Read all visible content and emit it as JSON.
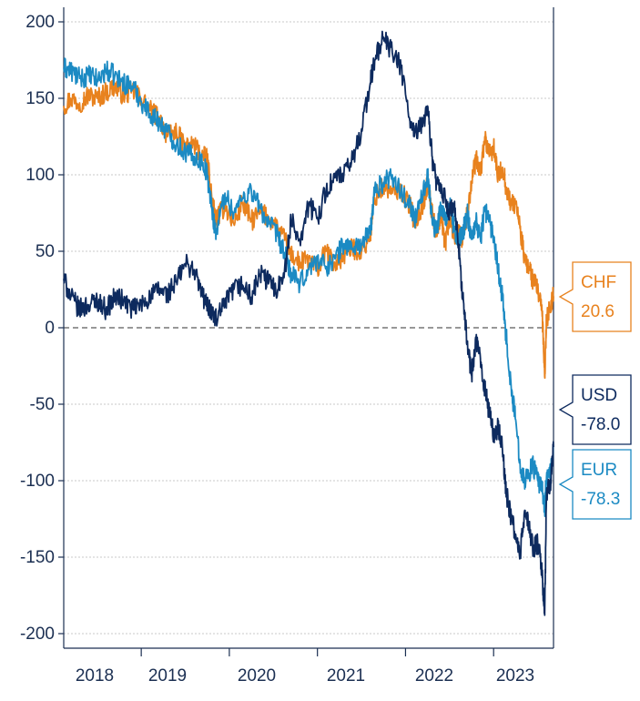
{
  "chart_data": {
    "type": "line",
    "title": "",
    "xlabel": "",
    "ylabel": "",
    "ylim": [
      -200,
      200
    ],
    "yticks": [
      200,
      150,
      100,
      50,
      0,
      -50,
      -100,
      -150,
      -200
    ],
    "ytick_labels": [
      "200",
      "150",
      "100",
      "50",
      "0",
      "-50",
      "-100",
      "-150",
      "-200"
    ],
    "xlim": [
      2017.62,
      2023.18
    ],
    "x_tick_labels": [
      "2018",
      "2019",
      "2020",
      "2021",
      "2022",
      "2023"
    ],
    "grid": true,
    "zero_line": "dashed",
    "legend": "callouts at right edge",
    "series": [
      {
        "name": "CHF",
        "color": "#e8821e",
        "last_label": "20.6",
        "points": [
          [
            2017.62,
            145
          ],
          [
            2017.7,
            150
          ],
          [
            2017.8,
            147
          ],
          [
            2017.9,
            152
          ],
          [
            2018.0,
            150
          ],
          [
            2018.1,
            154
          ],
          [
            2018.2,
            158
          ],
          [
            2018.3,
            152
          ],
          [
            2018.4,
            155
          ],
          [
            2018.5,
            150
          ],
          [
            2018.6,
            142
          ],
          [
            2018.7,
            138
          ],
          [
            2018.8,
            125
          ],
          [
            2018.9,
            128
          ],
          [
            2019.0,
            118
          ],
          [
            2019.1,
            120
          ],
          [
            2019.2,
            112
          ],
          [
            2019.25,
            110
          ],
          [
            2019.3,
            85
          ],
          [
            2019.35,
            70
          ],
          [
            2019.45,
            80
          ],
          [
            2019.55,
            68
          ],
          [
            2019.65,
            82
          ],
          [
            2019.75,
            70
          ],
          [
            2019.85,
            75
          ],
          [
            2019.95,
            72
          ],
          [
            2020.05,
            65
          ],
          [
            2020.15,
            55
          ],
          [
            2020.2,
            48
          ],
          [
            2020.3,
            42
          ],
          [
            2020.4,
            45
          ],
          [
            2020.5,
            38
          ],
          [
            2020.6,
            50
          ],
          [
            2020.7,
            40
          ],
          [
            2020.8,
            48
          ],
          [
            2020.9,
            52
          ],
          [
            2021.0,
            50
          ],
          [
            2021.1,
            60
          ],
          [
            2021.15,
            85
          ],
          [
            2021.25,
            92
          ],
          [
            2021.35,
            88
          ],
          [
            2021.45,
            90
          ],
          [
            2021.55,
            80
          ],
          [
            2021.6,
            70
          ],
          [
            2021.7,
            80
          ],
          [
            2021.75,
            95
          ],
          [
            2021.8,
            75
          ],
          [
            2021.85,
            62
          ],
          [
            2021.9,
            75
          ],
          [
            2021.95,
            55
          ],
          [
            2022.0,
            72
          ],
          [
            2022.05,
            60
          ],
          [
            2022.1,
            62
          ],
          [
            2022.15,
            58
          ],
          [
            2022.2,
            75
          ],
          [
            2022.25,
            95
          ],
          [
            2022.3,
            110
          ],
          [
            2022.35,
            100
          ],
          [
            2022.4,
            125
          ],
          [
            2022.45,
            112
          ],
          [
            2022.5,
            118
          ],
          [
            2022.55,
            98
          ],
          [
            2022.6,
            105
          ],
          [
            2022.65,
            90
          ],
          [
            2022.7,
            80
          ],
          [
            2022.75,
            82
          ],
          [
            2022.8,
            65
          ],
          [
            2022.85,
            45
          ],
          [
            2022.9,
            40
          ],
          [
            2022.95,
            30
          ],
          [
            2023.0,
            25
          ],
          [
            2023.05,
            10
          ],
          [
            2023.08,
            -32
          ],
          [
            2023.1,
            5
          ],
          [
            2023.15,
            15
          ],
          [
            2023.18,
            20.6
          ]
        ]
      },
      {
        "name": "EUR",
        "color": "#1b8ac3",
        "last_label": "-78.3",
        "points": [
          [
            2017.62,
            170
          ],
          [
            2017.7,
            168
          ],
          [
            2017.8,
            163
          ],
          [
            2017.9,
            165
          ],
          [
            2018.0,
            162
          ],
          [
            2018.1,
            168
          ],
          [
            2018.2,
            165
          ],
          [
            2018.3,
            160
          ],
          [
            2018.4,
            158
          ],
          [
            2018.5,
            148
          ],
          [
            2018.6,
            140
          ],
          [
            2018.7,
            135
          ],
          [
            2018.8,
            128
          ],
          [
            2018.9,
            120
          ],
          [
            2019.0,
            115
          ],
          [
            2019.1,
            112
          ],
          [
            2019.2,
            108
          ],
          [
            2019.25,
            100
          ],
          [
            2019.3,
            78
          ],
          [
            2019.35,
            62
          ],
          [
            2019.45,
            88
          ],
          [
            2019.55,
            75
          ],
          [
            2019.65,
            85
          ],
          [
            2019.75,
            90
          ],
          [
            2019.85,
            78
          ],
          [
            2019.95,
            68
          ],
          [
            2020.05,
            60
          ],
          [
            2020.15,
            45
          ],
          [
            2020.2,
            35
          ],
          [
            2020.3,
            28
          ],
          [
            2020.4,
            38
          ],
          [
            2020.5,
            45
          ],
          [
            2020.6,
            40
          ],
          [
            2020.7,
            45
          ],
          [
            2020.8,
            55
          ],
          [
            2020.9,
            52
          ],
          [
            2021.0,
            55
          ],
          [
            2021.1,
            62
          ],
          [
            2021.15,
            90
          ],
          [
            2021.25,
            95
          ],
          [
            2021.35,
            100
          ],
          [
            2021.45,
            88
          ],
          [
            2021.55,
            82
          ],
          [
            2021.6,
            70
          ],
          [
            2021.7,
            88
          ],
          [
            2021.75,
            102
          ],
          [
            2021.8,
            72
          ],
          [
            2021.85,
            62
          ],
          [
            2021.9,
            80
          ],
          [
            2021.95,
            72
          ],
          [
            2022.0,
            80
          ],
          [
            2022.05,
            65
          ],
          [
            2022.1,
            55
          ],
          [
            2022.15,
            62
          ],
          [
            2022.2,
            75
          ],
          [
            2022.25,
            60
          ],
          [
            2022.3,
            70
          ],
          [
            2022.35,
            58
          ],
          [
            2022.4,
            78
          ],
          [
            2022.45,
            70
          ],
          [
            2022.5,
            60
          ],
          [
            2022.55,
            40
          ],
          [
            2022.6,
            20
          ],
          [
            2022.65,
            -10
          ],
          [
            2022.7,
            -40
          ],
          [
            2022.75,
            -60
          ],
          [
            2022.8,
            -88
          ],
          [
            2022.85,
            -100
          ],
          [
            2022.9,
            -95
          ],
          [
            2022.95,
            -90
          ],
          [
            2023.0,
            -100
          ],
          [
            2023.05,
            -105
          ],
          [
            2023.08,
            -118
          ],
          [
            2023.1,
            -98
          ],
          [
            2023.15,
            -95
          ],
          [
            2023.18,
            -78.3
          ]
        ]
      },
      {
        "name": "USD",
        "color": "#0d2a5e",
        "last_label": "-78.0",
        "points": [
          [
            2017.62,
            32
          ],
          [
            2017.7,
            20
          ],
          [
            2017.8,
            12
          ],
          [
            2017.9,
            15
          ],
          [
            2018.0,
            18
          ],
          [
            2018.1,
            12
          ],
          [
            2018.2,
            20
          ],
          [
            2018.3,
            18
          ],
          [
            2018.4,
            12
          ],
          [
            2018.5,
            15
          ],
          [
            2018.6,
            20
          ],
          [
            2018.7,
            25
          ],
          [
            2018.8,
            22
          ],
          [
            2018.9,
            30
          ],
          [
            2019.0,
            42
          ],
          [
            2019.1,
            38
          ],
          [
            2019.2,
            20
          ],
          [
            2019.25,
            15
          ],
          [
            2019.3,
            10
          ],
          [
            2019.35,
            5
          ],
          [
            2019.45,
            15
          ],
          [
            2019.55,
            25
          ],
          [
            2019.65,
            28
          ],
          [
            2019.75,
            20
          ],
          [
            2019.85,
            35
          ],
          [
            2019.95,
            30
          ],
          [
            2020.05,
            25
          ],
          [
            2020.15,
            45
          ],
          [
            2020.2,
            70
          ],
          [
            2020.3,
            58
          ],
          [
            2020.4,
            80
          ],
          [
            2020.5,
            72
          ],
          [
            2020.6,
            90
          ],
          [
            2020.7,
            98
          ],
          [
            2020.8,
            100
          ],
          [
            2020.9,
            110
          ],
          [
            2021.0,
            130
          ],
          [
            2021.1,
            160
          ],
          [
            2021.15,
            175
          ],
          [
            2021.25,
            190
          ],
          [
            2021.35,
            180
          ],
          [
            2021.45,
            170
          ],
          [
            2021.55,
            135
          ],
          [
            2021.6,
            125
          ],
          [
            2021.7,
            135
          ],
          [
            2021.75,
            145
          ],
          [
            2021.8,
            112
          ],
          [
            2021.85,
            95
          ],
          [
            2021.9,
            88
          ],
          [
            2021.95,
            85
          ],
          [
            2022.0,
            75
          ],
          [
            2022.05,
            80
          ],
          [
            2022.1,
            55
          ],
          [
            2022.15,
            20
          ],
          [
            2022.2,
            -10
          ],
          [
            2022.25,
            -30
          ],
          [
            2022.3,
            -10
          ],
          [
            2022.35,
            -20
          ],
          [
            2022.4,
            -40
          ],
          [
            2022.45,
            -55
          ],
          [
            2022.5,
            -70
          ],
          [
            2022.55,
            -65
          ],
          [
            2022.6,
            -80
          ],
          [
            2022.65,
            -110
          ],
          [
            2022.7,
            -125
          ],
          [
            2022.75,
            -135
          ],
          [
            2022.8,
            -150
          ],
          [
            2022.85,
            -120
          ],
          [
            2022.9,
            -130
          ],
          [
            2022.95,
            -145
          ],
          [
            2023.0,
            -140
          ],
          [
            2023.05,
            -160
          ],
          [
            2023.08,
            -188
          ],
          [
            2023.1,
            -110
          ],
          [
            2023.15,
            -100
          ],
          [
            2023.18,
            -78.0
          ]
        ]
      }
    ]
  }
}
